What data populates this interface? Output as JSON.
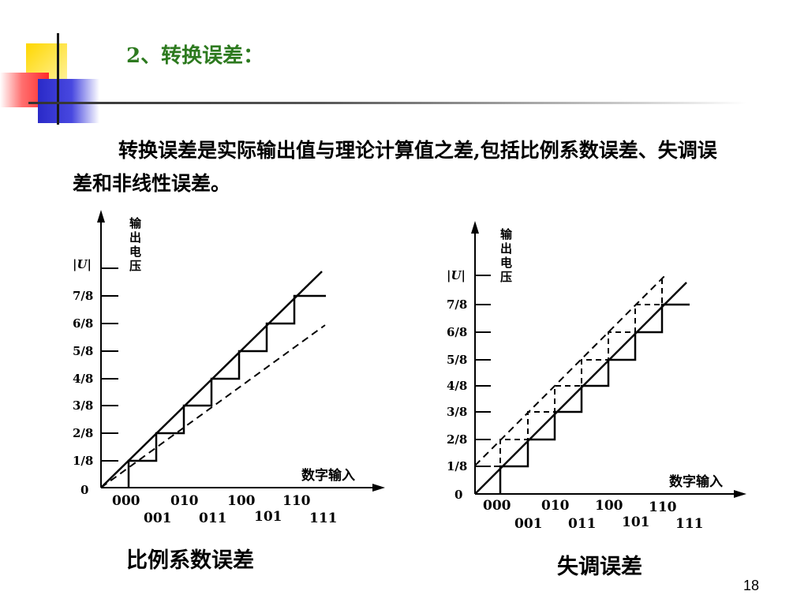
{
  "title": "2、转换误差：",
  "paragraph": "转换误差是实际输出值与理论计算值之差,包括比例系数误差、失调误差和非线性误差。",
  "diagrams": [
    {
      "y_axis_label": "|U|",
      "y_axis_title": [
        "输",
        "出",
        "电",
        "压"
      ],
      "y_ticks": [
        "0",
        "1/8",
        "2/8",
        "3/8",
        "4/8",
        "5/8",
        "6/8",
        "7/8"
      ],
      "x_axis_title": "数字输入",
      "x_ticks_upper": [
        "000",
        "010",
        "100",
        "110"
      ],
      "x_ticks_lower": [
        "001",
        "011",
        "101",
        "111"
      ],
      "caption": "比例系数误差"
    },
    {
      "y_axis_label": "|U|",
      "y_axis_title": [
        "输",
        "出",
        "电",
        "压"
      ],
      "y_ticks": [
        "0",
        "1/8",
        "2/8",
        "3/8",
        "4/8",
        "5/8",
        "6/8",
        "7/8"
      ],
      "x_axis_title": "数字输入",
      "x_ticks_upper": [
        "000",
        "010",
        "100",
        "110"
      ],
      "x_ticks_lower": [
        "001",
        "011",
        "101",
        "111"
      ],
      "caption": "失调误差"
    }
  ],
  "page_number": "18",
  "colors": {
    "title": "#2d7a1f",
    "deco_yellow": "#ffd700",
    "deco_red": "#ff3333",
    "deco_blue": "#3333cc"
  }
}
